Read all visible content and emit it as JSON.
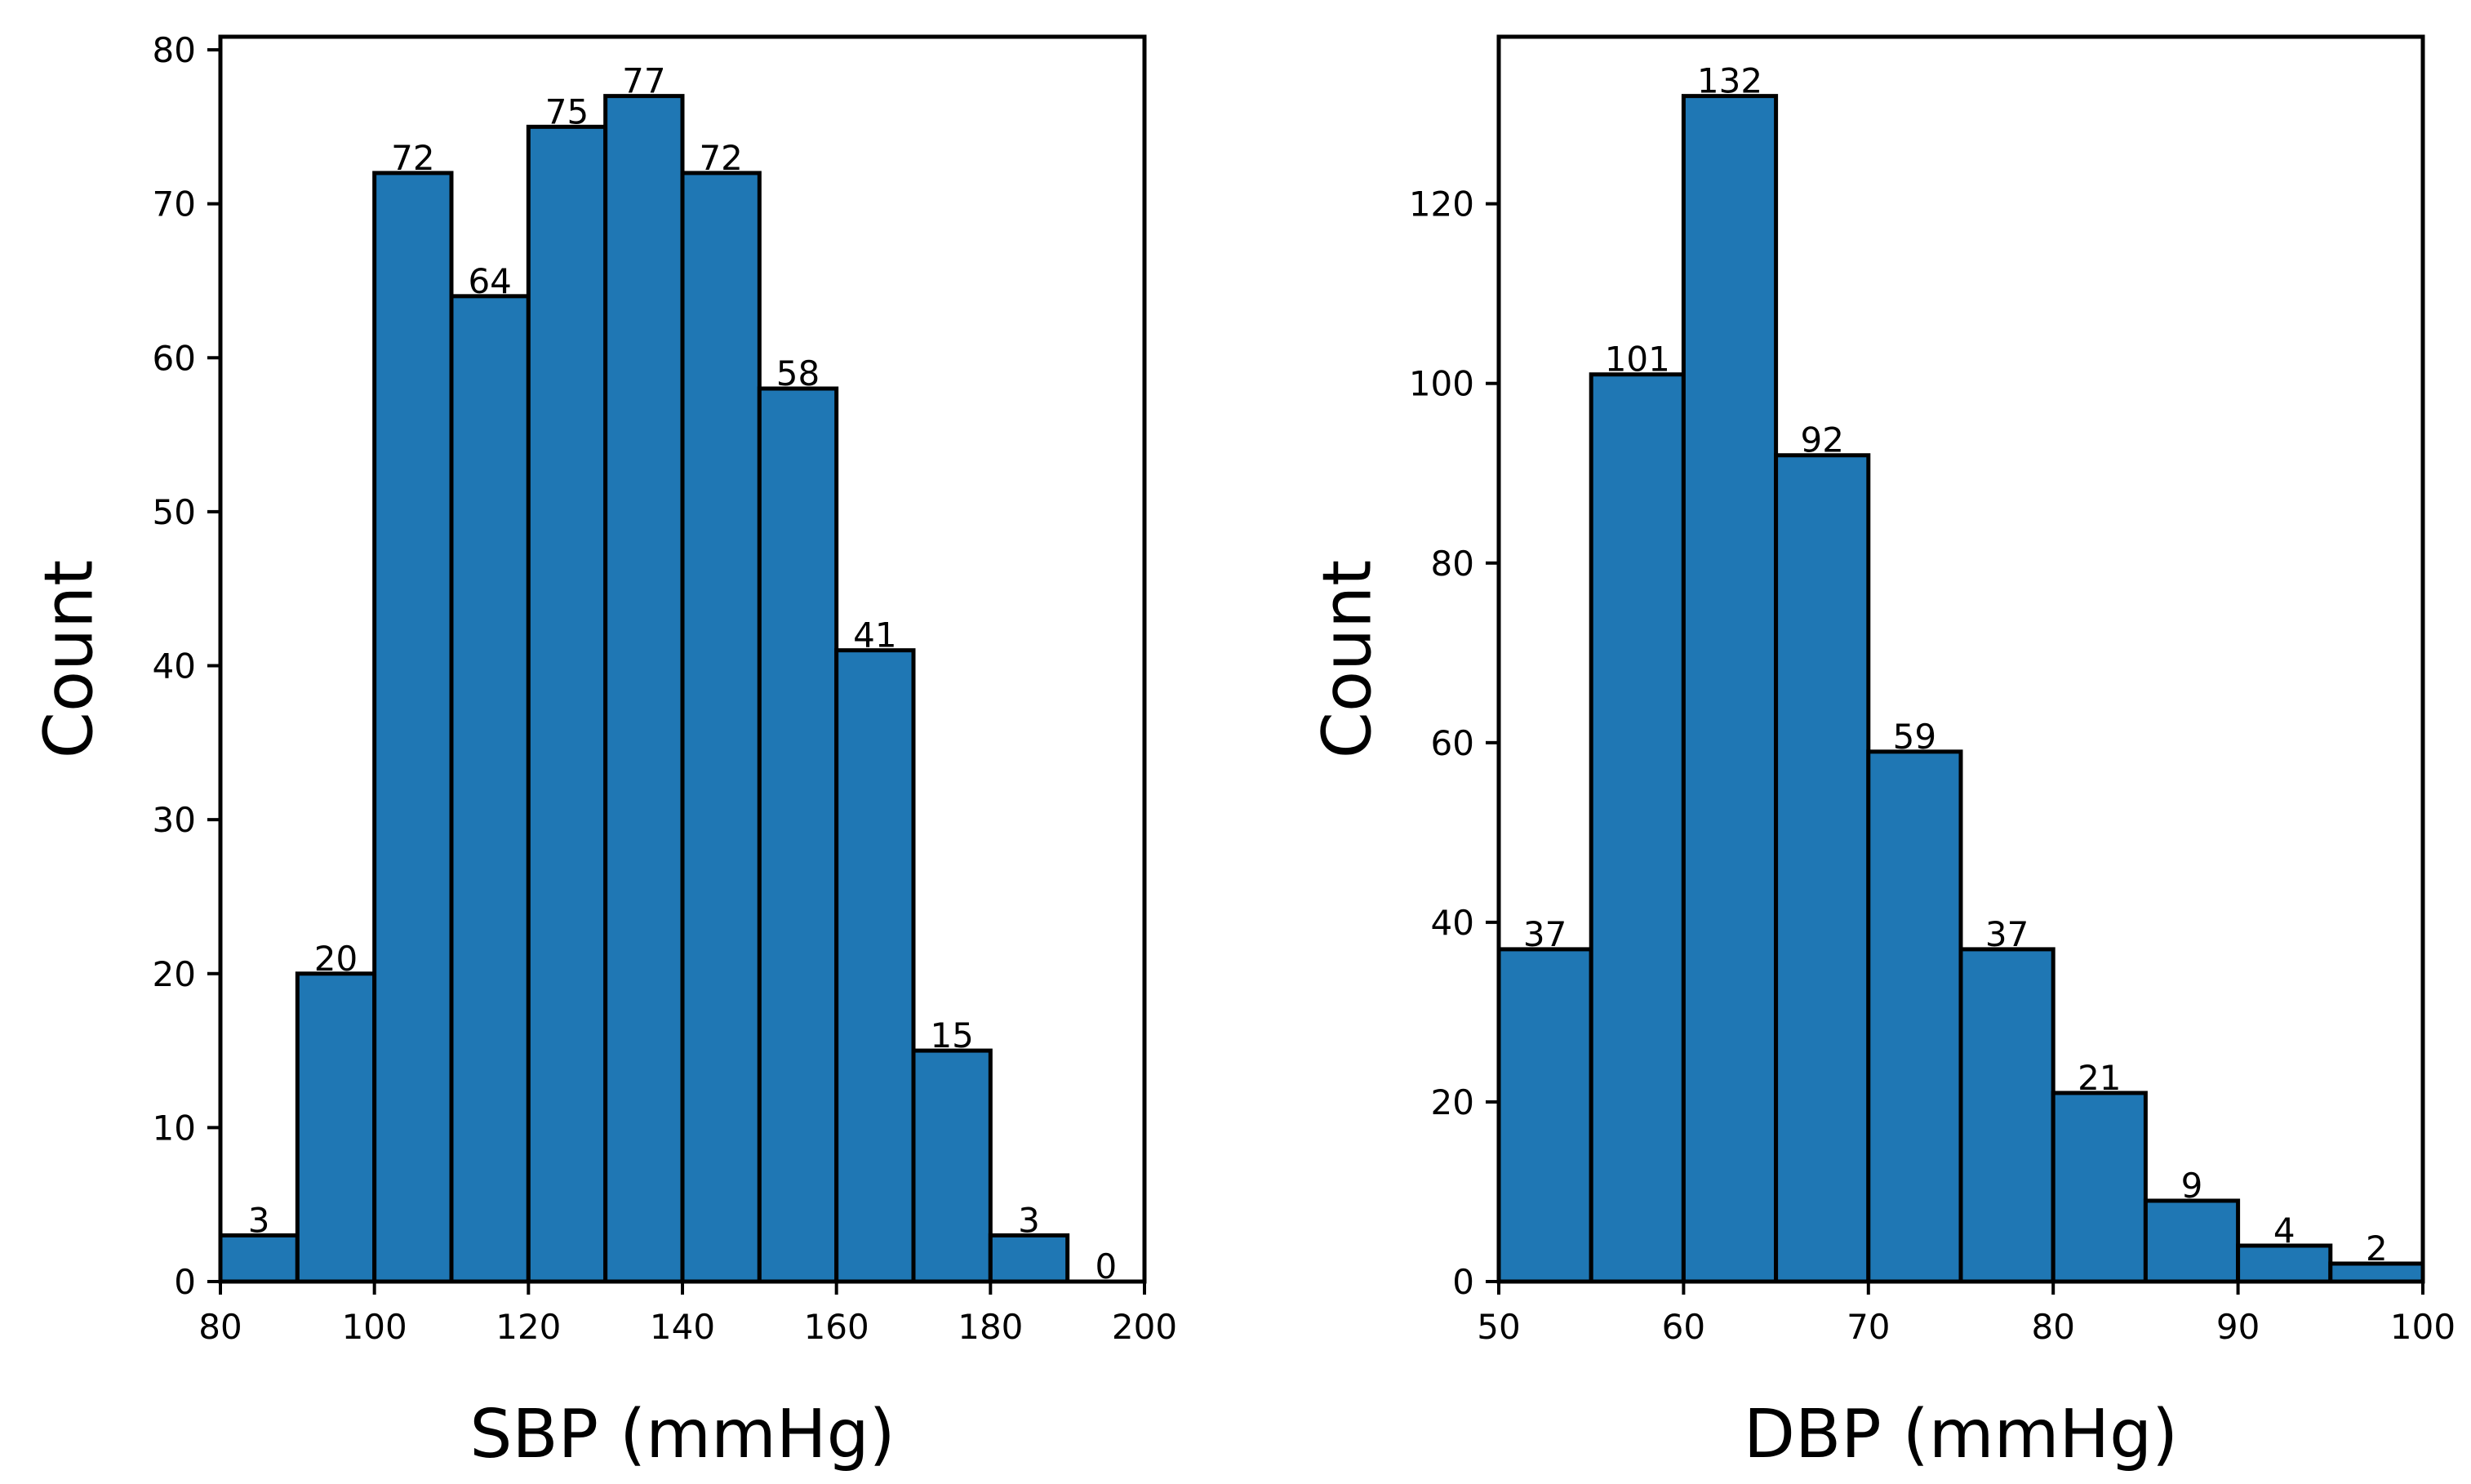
{
  "colors": {
    "bar_fill": "#1f77b4",
    "bar_edge": "#000000",
    "axis": "#000000",
    "text": "#000000"
  },
  "chart_data": [
    {
      "type": "bar",
      "title": "",
      "xlabel": "SBP (mmHg)",
      "ylabel": "Count",
      "bin_edges": [
        80,
        90,
        100,
        110,
        120,
        130,
        140,
        150,
        160,
        170,
        180,
        190,
        200
      ],
      "values": [
        3,
        20,
        72,
        64,
        75,
        77,
        72,
        58,
        41,
        15,
        3,
        0
      ],
      "value_labels": [
        "3",
        "20",
        "72",
        "64",
        "75",
        "77",
        "72",
        "58",
        "41",
        "15",
        "3",
        "0"
      ],
      "xlim": [
        80,
        200
      ],
      "ylim": [
        0,
        80.85
      ],
      "xticks": [
        80,
        100,
        120,
        140,
        160,
        180,
        200
      ],
      "xtick_labels": [
        "80",
        "100",
        "120",
        "140",
        "160",
        "180",
        "200"
      ],
      "yticks": [
        0,
        10,
        20,
        30,
        40,
        50,
        60,
        70,
        80
      ],
      "ytick_labels": [
        "0",
        "10",
        "20",
        "30",
        "40",
        "50",
        "60",
        "70",
        "80"
      ],
      "grid": false,
      "legend": "none"
    },
    {
      "type": "bar",
      "title": "",
      "xlabel": "DBP (mmHg)",
      "ylabel": "Count",
      "bin_edges": [
        50,
        55,
        60,
        65,
        70,
        75,
        80,
        85,
        90,
        95,
        100
      ],
      "values": [
        37,
        101,
        132,
        92,
        59,
        37,
        21,
        9,
        4,
        2
      ],
      "value_labels": [
        "37",
        "101",
        "132",
        "92",
        "59",
        "37",
        "21",
        "9",
        "4",
        "2"
      ],
      "xlim": [
        50,
        100
      ],
      "ylim": [
        0,
        138.6
      ],
      "xticks": [
        50,
        60,
        70,
        80,
        90,
        100
      ],
      "xtick_labels": [
        "50",
        "60",
        "70",
        "80",
        "90",
        "100"
      ],
      "yticks": [
        0,
        20,
        40,
        60,
        80,
        100,
        120
      ],
      "ytick_labels": [
        "0",
        "20",
        "40",
        "60",
        "80",
        "100",
        "120"
      ],
      "grid": false,
      "legend": "none"
    }
  ]
}
